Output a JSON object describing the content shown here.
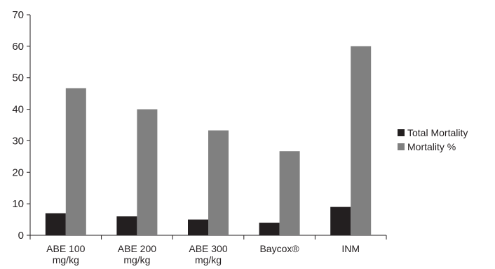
{
  "chart_data": {
    "type": "bar",
    "categories": [
      [
        "ABE 100",
        "mg/kg"
      ],
      [
        "ABE 200",
        "mg/kg"
      ],
      [
        "ABE  300",
        "mg/kg"
      ],
      [
        "Baycox®"
      ],
      [
        "INM"
      ]
    ],
    "series": [
      {
        "name": "Total Mortality",
        "color": "#231f20",
        "values": [
          7,
          6,
          5,
          4,
          9
        ]
      },
      {
        "name": "Mortality %",
        "color": "#808080",
        "values": [
          46.7,
          40,
          33.3,
          26.7,
          60
        ]
      }
    ],
    "yticks": [
      0,
      10,
      20,
      30,
      40,
      50,
      60,
      70
    ],
    "ylim": [
      0,
      70
    ],
    "title": "",
    "xlabel": "",
    "ylabel": "",
    "grid": false,
    "legend_position": "right"
  }
}
